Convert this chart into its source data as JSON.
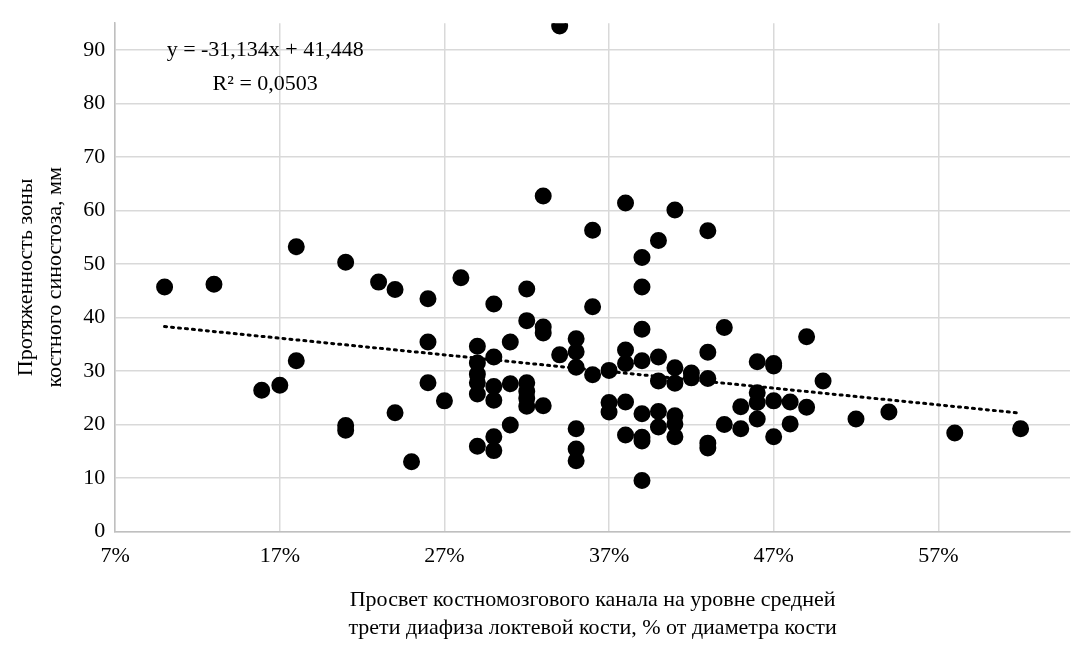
{
  "chart_data": {
    "type": "scatter",
    "xlabel": "Просвет костномозгового канала на уровне средней трети диафиза локтевой кости, % от диаметра кости",
    "ylabel": "Протяженность зоны костного синостоза, мм",
    "xlim": [
      7,
      65
    ],
    "ylim": [
      0,
      95
    ],
    "xticks": [
      {
        "value": 7,
        "label": "7%"
      },
      {
        "value": 17,
        "label": "17%"
      },
      {
        "value": 27,
        "label": "27%"
      },
      {
        "value": 37,
        "label": "37%"
      },
      {
        "value": 47,
        "label": "47%"
      },
      {
        "value": 57,
        "label": "57%"
      }
    ],
    "yticks": [
      0,
      10,
      20,
      30,
      40,
      50,
      60,
      70,
      80,
      90
    ],
    "grid": true,
    "annotations": [
      "y = -31,134x + 41,448",
      "R² = 0,0503"
    ],
    "series": [
      {
        "type": "scatter",
        "color": "#000000",
        "marker": "circle",
        "x": [
          10,
          13,
          18,
          18,
          15.9,
          17,
          21,
          21,
          21,
          23,
          24,
          24,
          25,
          26,
          26,
          26,
          27,
          28,
          29,
          29,
          29,
          29,
          29,
          29,
          30,
          30,
          30,
          30,
          30,
          30,
          31,
          31,
          31,
          32,
          32,
          32,
          32,
          32,
          32,
          33,
          33,
          33,
          33,
          34,
          34,
          35,
          35,
          35,
          35,
          35,
          35,
          36,
          36,
          36,
          37,
          37,
          37,
          38,
          38,
          38,
          38,
          38,
          39,
          39,
          39,
          39,
          39,
          39,
          39,
          39,
          40,
          40,
          40,
          40,
          40,
          41,
          41,
          41,
          41,
          41,
          41,
          42,
          42,
          43,
          43,
          43,
          43,
          43,
          44,
          44,
          45,
          45,
          46,
          46,
          46,
          46,
          47,
          47,
          47,
          47,
          48,
          48,
          49,
          49,
          50,
          52,
          54,
          58,
          62
        ],
        "values": [
          45.7,
          46.2,
          53.2,
          31.9,
          26.4,
          27.3,
          50.3,
          19.8,
          18.9,
          46.6,
          45.2,
          22.2,
          13,
          43.5,
          35.4,
          27.8,
          24.4,
          47.4,
          34.6,
          31.5,
          29.4,
          27.8,
          25.7,
          15.9,
          42.5,
          32.6,
          27.1,
          24.5,
          17.7,
          15.1,
          35.4,
          27.6,
          19.9,
          45.3,
          39.4,
          27.8,
          26.2,
          24.9,
          23.4,
          38.2,
          37.1,
          62.7,
          23.5,
          94.5,
          33,
          36,
          33.6,
          30.7,
          19.2,
          15.4,
          13.2,
          56.3,
          42,
          29.3,
          30.1,
          24.1,
          22.3,
          61.4,
          33.9,
          31.4,
          24.2,
          18,
          51.2,
          45.7,
          37.8,
          31.9,
          22,
          17.6,
          16.9,
          9.5,
          54.4,
          32.6,
          28.1,
          22.4,
          19.5,
          60.1,
          30.6,
          27.7,
          21.6,
          20.1,
          17.7,
          29.6,
          28.7,
          56.2,
          33.5,
          28.6,
          16.5,
          15.6,
          38.1,
          20,
          23.3,
          19.2,
          31.7,
          25.9,
          24.1,
          21,
          31.4,
          30.9,
          24.4,
          17.7,
          24.2,
          20.1,
          36.4,
          23.2,
          28.1,
          21,
          22.3,
          18.4,
          19.2
        ]
      },
      {
        "type": "line",
        "color": "#000000",
        "marker": "none",
        "line_style": "dotted",
        "x": [
          10,
          62
        ],
        "values": [
          38.3,
          22.1
        ]
      }
    ]
  }
}
